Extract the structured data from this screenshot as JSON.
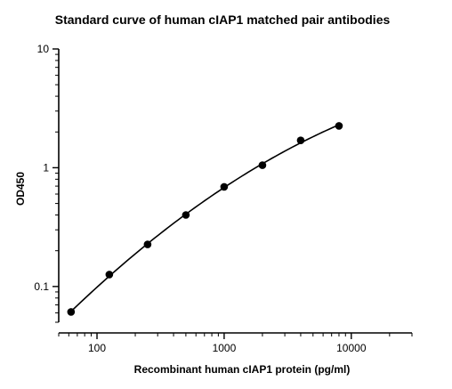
{
  "chart_data": {
    "type": "scatter",
    "title": "Standard curve of human cIAP1 matched pair antibodies",
    "xlabel": "Recombinant human cIAP1 protein (pg/ml)",
    "ylabel": "OD450",
    "x_scale": "log",
    "y_scale": "log",
    "xlim": [
      50,
      30000
    ],
    "ylim": [
      0.05,
      10
    ],
    "x_ticks": [
      100,
      1000,
      10000
    ],
    "x_tick_labels": [
      "100",
      "1000",
      "10000"
    ],
    "y_ticks": [
      0.1,
      1,
      10
    ],
    "y_tick_labels": [
      "0.1",
      "1",
      "10"
    ],
    "grid": false,
    "fit_curve": true,
    "x": [
      62.5,
      125,
      250,
      500,
      1000,
      2000,
      4000,
      8000
    ],
    "y": [
      0.061,
      0.126,
      0.226,
      0.4,
      0.69,
      1.05,
      1.7,
      2.25
    ]
  }
}
